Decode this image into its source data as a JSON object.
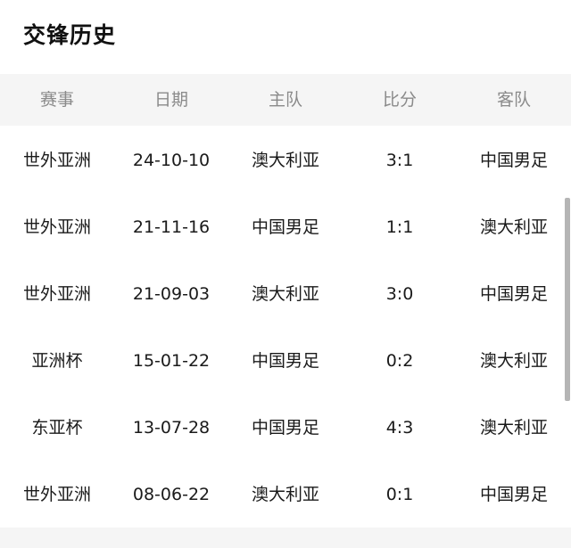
{
  "title": "交锋历史",
  "columns": [
    "赛事",
    "日期",
    "主队",
    "比分",
    "客队"
  ],
  "rows": [
    [
      "世外亚洲",
      "24-10-10",
      "澳大利亚",
      "3:1",
      "中国男足"
    ],
    [
      "世外亚洲",
      "21-11-16",
      "中国男足",
      "1:1",
      "澳大利亚"
    ],
    [
      "世外亚洲",
      "21-09-03",
      "澳大利亚",
      "3:0",
      "中国男足"
    ],
    [
      "亚洲杯",
      "15-01-22",
      "中国男足",
      "0:2",
      "澳大利亚"
    ],
    [
      "东亚杯",
      "13-07-28",
      "中国男足",
      "4:3",
      "澳大利亚"
    ],
    [
      "世外亚洲",
      "08-06-22",
      "澳大利亚",
      "0:1",
      "中国男足"
    ]
  ]
}
